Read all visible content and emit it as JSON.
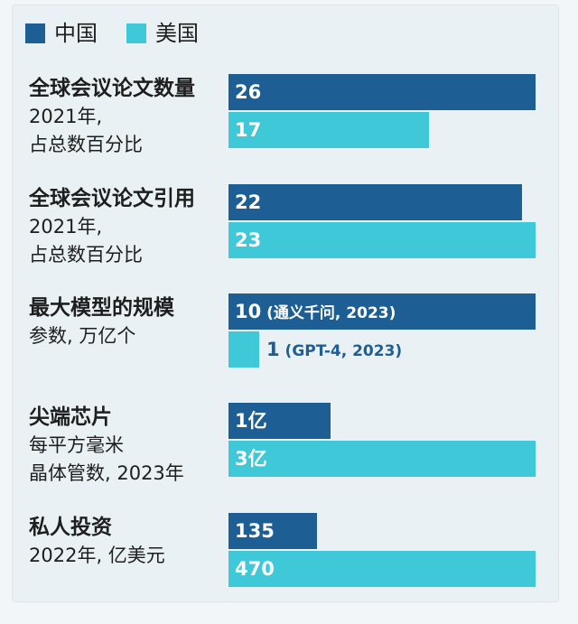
{
  "legend": [
    {
      "label": "中国",
      "color": "#1d5f94"
    },
    {
      "label": "美国",
      "color": "#3fc9d8"
    }
  ],
  "chart_data": {
    "type": "bar",
    "orientation": "horizontal",
    "groups": [
      {
        "title": "全球会议论文数量",
        "subtitle_lines": [
          "2021年,",
          "占总数百分比"
        ],
        "china": {
          "value": 26,
          "label": "26"
        },
        "usa": {
          "value": 17,
          "label": "17"
        }
      },
      {
        "title": "全球会议论文引用",
        "subtitle_lines": [
          "2021年,",
          "占总数百分比"
        ],
        "china": {
          "value": 22,
          "label": "22"
        },
        "usa": {
          "value": 23,
          "label": "23"
        }
      },
      {
        "title": "最大模型的规模",
        "subtitle_lines": [
          "参数, 万亿个"
        ],
        "china": {
          "value": 10,
          "label": "10",
          "note": "(通义千问, 2023)"
        },
        "usa": {
          "value": 1,
          "label": "1",
          "note": "(GPT-4, 2023)"
        }
      },
      {
        "title": "尖端芯片",
        "subtitle_lines": [
          "每平方毫米",
          "晶体管数, 2023年"
        ],
        "china": {
          "value": 1,
          "label": "1亿"
        },
        "usa": {
          "value": 3,
          "label": "3亿"
        }
      },
      {
        "title": "私人投资",
        "subtitle_lines": [
          "2022年, 亿美元"
        ],
        "china": {
          "value": 135,
          "label": "135"
        },
        "usa": {
          "value": 470,
          "label": "470"
        }
      }
    ],
    "colors": {
      "china": "#1d5f94",
      "usa": "#3fc9d8"
    }
  }
}
